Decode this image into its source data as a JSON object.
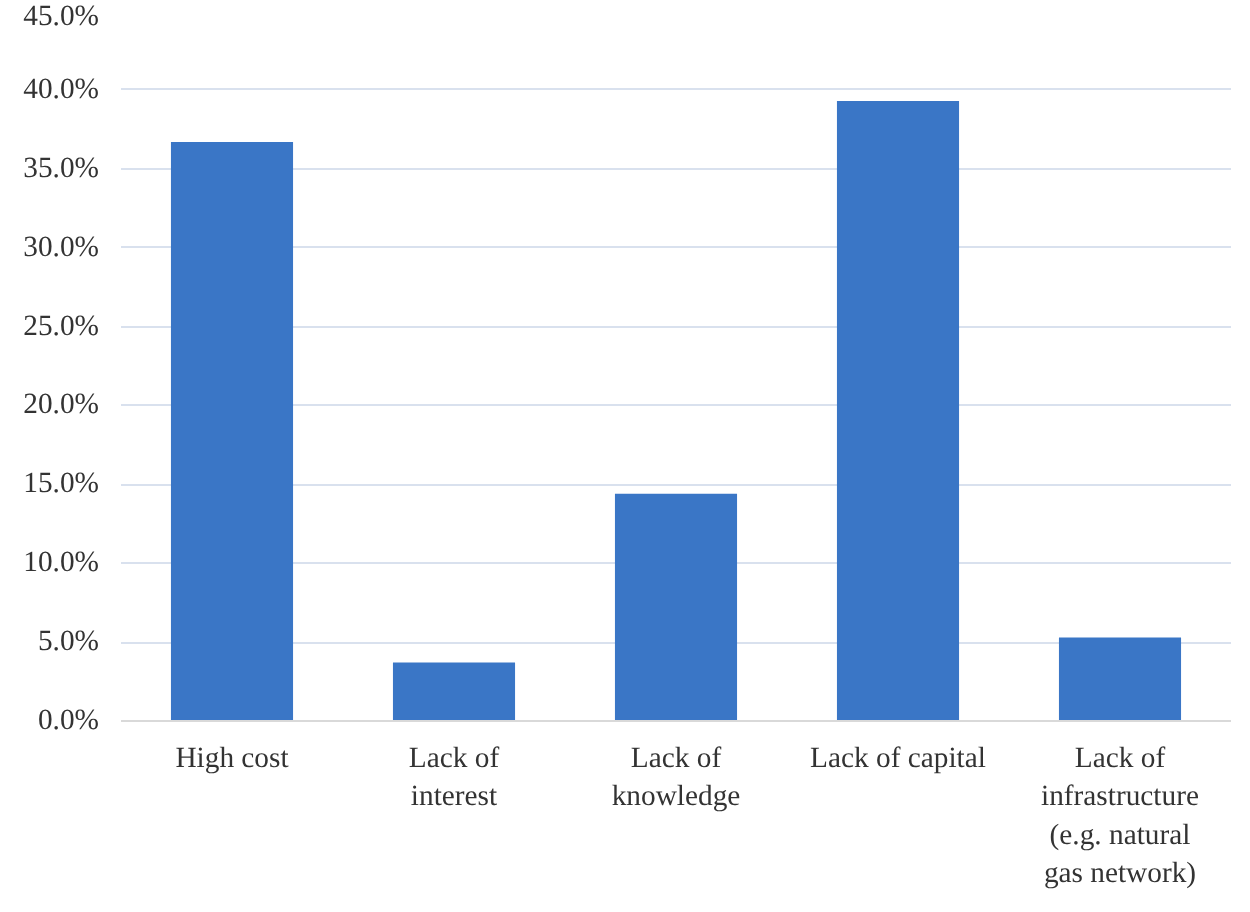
{
  "chart_data": {
    "type": "bar",
    "categories": [
      "High cost",
      "Lack of interest",
      "Lack of knowledge",
      "Lack of capital",
      "Lack of infrastructure (e.g. natural gas network)"
    ],
    "values": [
      36.7,
      3.7,
      14.4,
      39.3,
      5.3
    ],
    "color": "#3a76c6",
    "ylim": [
      0,
      45
    ],
    "yticks": [
      {
        "value": 0,
        "label": "0.0%"
      },
      {
        "value": 5,
        "label": "5.0%"
      },
      {
        "value": 10,
        "label": "10.0%"
      },
      {
        "value": 15,
        "label": "15.0%"
      },
      {
        "value": 20,
        "label": "20.0%"
      },
      {
        "value": 25,
        "label": "25.0%"
      },
      {
        "value": 30,
        "label": "30.0%"
      },
      {
        "value": 35,
        "label": "35.0%"
      },
      {
        "value": 40,
        "label": "40.0%"
      },
      {
        "value": 45,
        "label": "45.0%"
      }
    ],
    "grid": "y"
  }
}
